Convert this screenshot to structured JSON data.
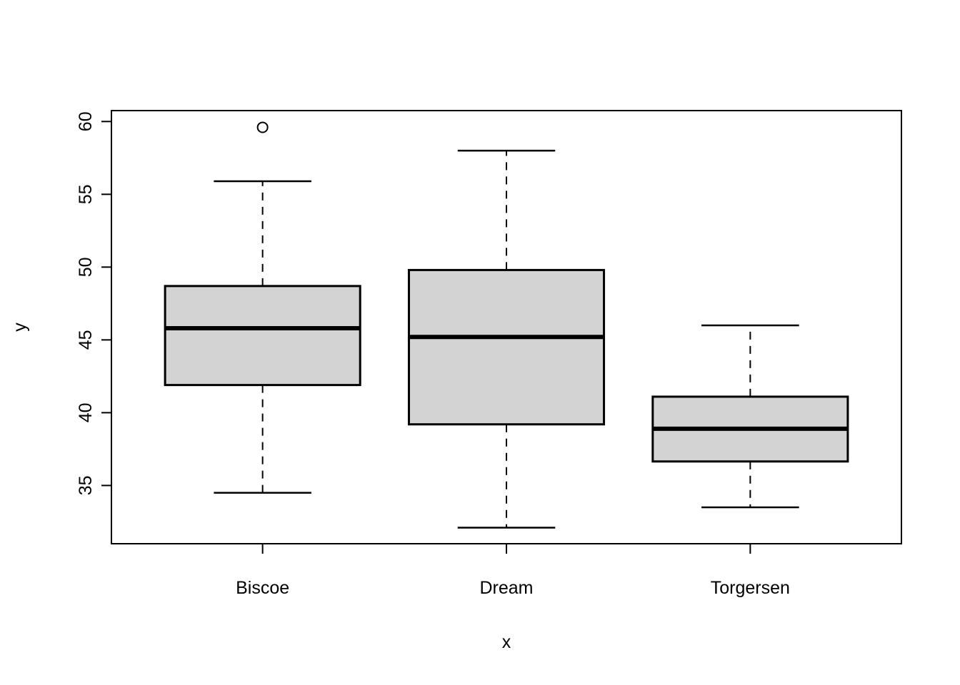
{
  "figure": {
    "background": "#FFFFFF"
  },
  "chart_data": {
    "type": "boxplot",
    "title": "",
    "xlabel": "x",
    "ylabel": "y",
    "categories": [
      "Biscoe",
      "Dream",
      "Torgersen"
    ],
    "y_ticks": [
      35,
      40,
      45,
      50,
      55,
      60
    ],
    "ylim": [
      31.0,
      60.75
    ],
    "xlim": [
      0.38,
      3.62
    ],
    "grid": false,
    "legend_position": "none",
    "series": [
      {
        "category": "Biscoe",
        "whisker_low": 34.5,
        "q1": 41.9,
        "median": 45.8,
        "q3": 48.7,
        "whisker_high": 55.9,
        "outliers": [
          59.6
        ]
      },
      {
        "category": "Dream",
        "whisker_low": 32.1,
        "q1": 39.2,
        "median": 45.2,
        "q3": 49.8,
        "whisker_high": 58.0,
        "outliers": []
      },
      {
        "category": "Torgersen",
        "whisker_low": 33.5,
        "q1": 36.65,
        "median": 38.9,
        "q3": 41.1,
        "whisker_high": 46.0,
        "outliers": []
      }
    ],
    "style": {
      "box_fill": "#D3D3D3",
      "line_color": "#000000",
      "median_color": "#000000",
      "whisker_line_style": "dashed",
      "outlier_marker": "open-circle",
      "background": "#FFFFFF"
    }
  }
}
